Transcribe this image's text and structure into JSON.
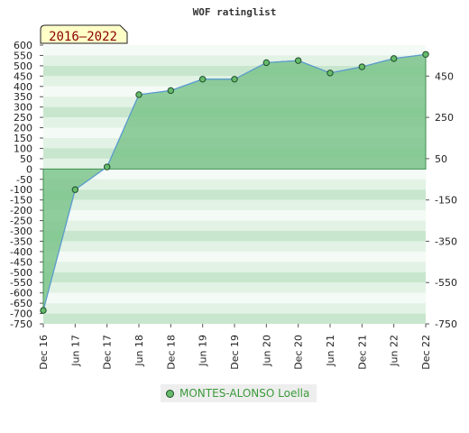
{
  "chart_data": {
    "type": "area",
    "title": "WOF ratinglist",
    "badge": "2016–2022",
    "categories": [
      "Dec 16",
      "Jun 17",
      "Dec 17",
      "Jun 18",
      "Dec 18",
      "Jun 19",
      "Dec 19",
      "Jun 20",
      "Dec 20",
      "Jun 21",
      "Dec 21",
      "Jun 22",
      "Dec 22"
    ],
    "series": [
      {
        "name": "MONTES-ALONSO Loella",
        "values": [
          -685,
          -100,
          10,
          360,
          380,
          435,
          435,
          515,
          525,
          465,
          495,
          535,
          555
        ]
      }
    ],
    "ylim": [
      -750,
      600
    ],
    "y_ticks_left": [
      600,
      550,
      500,
      450,
      400,
      350,
      300,
      250,
      200,
      150,
      100,
      50,
      0,
      -50,
      -100,
      -150,
      -200,
      -250,
      -300,
      -350,
      -400,
      -450,
      -500,
      -550,
      -600,
      -650,
      -700,
      -750
    ],
    "y_ticks_right": [
      450,
      250,
      50,
      -150,
      -350,
      -550,
      -750
    ],
    "grid": true,
    "legend_position": "bottom-center",
    "colors": {
      "fill": "#7cc48c",
      "line": "#5b9bd5",
      "marker": "#66bb6a",
      "marker_edge": "#1e4d2b",
      "badge_bg": "#ffffc8",
      "badge_text": "#8b0000"
    }
  }
}
